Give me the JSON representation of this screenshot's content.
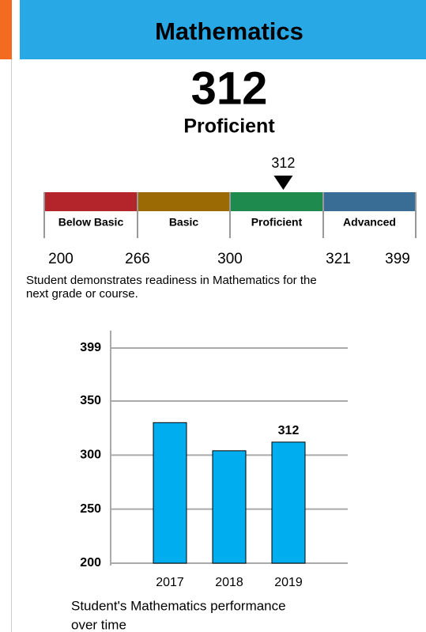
{
  "header": {
    "title": "Mathematics"
  },
  "score": {
    "value": 312,
    "level": "Proficient"
  },
  "scale": {
    "bands": [
      {
        "name": "Below Basic",
        "color": "#b3252b"
      },
      {
        "name": "Basic",
        "color": "#9c6a04"
      },
      {
        "name": "Proficient",
        "color": "#1e8a4e"
      },
      {
        "name": "Advanced",
        "color": "#3a6d95"
      }
    ],
    "cuts": [
      200,
      266,
      300,
      321,
      399
    ]
  },
  "description": [
    "Student demonstrates readiness in Mathematics for the",
    "next grade or course."
  ],
  "chart_data": {
    "type": "bar",
    "categories": [
      "2017",
      "2018",
      "2019"
    ],
    "values": [
      330,
      304,
      312
    ],
    "color": "#00aeef",
    "ylim": [
      200,
      399
    ],
    "yticks": [
      200,
      250,
      300,
      350,
      399
    ],
    "grid": true,
    "caption": [
      "Student's Mathematics performance",
      "over time"
    ]
  }
}
